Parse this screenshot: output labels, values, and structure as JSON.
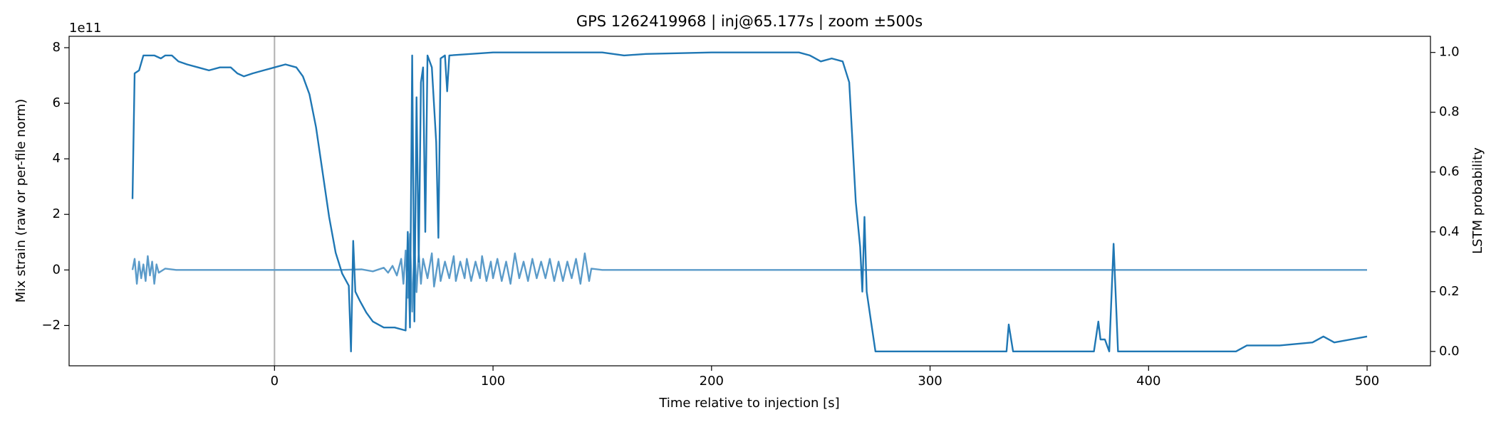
{
  "chart_data": {
    "type": "line",
    "title": "GPS 1262419968 | inj@65.177s | zoom ±500s",
    "xlabel": "Time relative to injection [s]",
    "ylabel": "Mix strain (raw or per-file norm)",
    "y2label": "LSTM probability",
    "y_offset_label": "1e11",
    "xlim": [
      -94,
      529
    ],
    "xticks": [
      0,
      100,
      200,
      300,
      400,
      500
    ],
    "ylim": [
      -3.45,
      8.41
    ],
    "yticks": [
      {
        "value": -2,
        "label": "−2"
      },
      0,
      2,
      4,
      6,
      8
    ],
    "y2lim": [
      -0.048,
      1.054
    ],
    "y2ticks": [
      {
        "value": 0,
        "label": "0.0"
      },
      {
        "value": 0.2,
        "label": "0.2"
      },
      {
        "value": 0.4,
        "label": "0.4"
      },
      {
        "value": 0.6,
        "label": "0.6"
      },
      {
        "value": 0.8,
        "label": "0.8"
      },
      {
        "value": 1.0,
        "label": "1.0"
      }
    ],
    "vline_x": 0,
    "vline_color": "#b0b0b0",
    "grid": false,
    "series": [
      {
        "name": "strain",
        "color": "#5b9bc9",
        "axis": "y",
        "x": [
          -65,
          -64,
          -63,
          -62,
          -61,
          -60,
          -59,
          -58,
          -57,
          -56,
          -55,
          -54,
          -53,
          -50,
          -45,
          -20,
          0,
          30,
          40,
          45,
          50,
          52,
          54,
          56,
          58,
          59,
          60,
          61,
          62,
          63,
          64,
          65,
          66,
          67,
          68,
          70,
          72,
          73,
          75,
          76,
          78,
          80,
          82,
          83,
          85,
          87,
          88,
          90,
          92,
          94,
          95,
          97,
          99,
          100,
          102,
          104,
          106,
          108,
          110,
          112,
          114,
          116,
          118,
          120,
          122,
          124,
          126,
          128,
          130,
          132,
          134,
          136,
          138,
          140,
          142,
          144,
          145,
          150,
          200,
          300,
          400,
          500
        ],
        "values": [
          0,
          0.4,
          -0.5,
          0.3,
          -0.3,
          0.2,
          -0.4,
          0.5,
          -0.2,
          0.3,
          -0.5,
          0.2,
          -0.1,
          0.05,
          0,
          0,
          0,
          0,
          0.02,
          -0.05,
          0.08,
          -0.1,
          0.15,
          -0.2,
          0.4,
          -0.5,
          0.7,
          -1.0,
          1.3,
          -1.5,
          0.9,
          -0.8,
          0.6,
          -0.5,
          0.4,
          -0.3,
          0.6,
          -0.6,
          0.4,
          -0.4,
          0.3,
          -0.3,
          0.5,
          -0.4,
          0.3,
          -0.3,
          0.4,
          -0.4,
          0.3,
          -0.3,
          0.5,
          -0.4,
          0.3,
          -0.3,
          0.4,
          -0.4,
          0.3,
          -0.5,
          0.6,
          -0.3,
          0.3,
          -0.4,
          0.4,
          -0.3,
          0.3,
          -0.3,
          0.4,
          -0.4,
          0.3,
          -0.4,
          0.3,
          -0.3,
          0.4,
          -0.5,
          0.6,
          -0.4,
          0.05,
          0,
          0,
          0,
          0,
          0
        ]
      },
      {
        "name": "LSTM probability",
        "color": "#1f77b4",
        "axis": "y2",
        "x": [
          -65,
          -64,
          -62,
          -60,
          -55,
          -52,
          -50,
          -47,
          -44,
          -40,
          -35,
          -30,
          -25,
          -20,
          -17,
          -14,
          -10,
          -5,
          0,
          5,
          10,
          13,
          16,
          19,
          22,
          25,
          28,
          31,
          34,
          35,
          36,
          37,
          39,
          42,
          45,
          50,
          55,
          60,
          61,
          62,
          63,
          64,
          65,
          66,
          67,
          68,
          69,
          70,
          72,
          74,
          75,
          76,
          78,
          79,
          80,
          100,
          150,
          160,
          170,
          200,
          240,
          245,
          250,
          255,
          260,
          263,
          266,
          268,
          269,
          270,
          271,
          273,
          275,
          300,
          335,
          336,
          338,
          375,
          377,
          378,
          380,
          382,
          384,
          386,
          440,
          445,
          460,
          475,
          480,
          485,
          500
        ],
        "values": [
          0.51,
          0.93,
          0.94,
          0.99,
          0.99,
          0.98,
          0.99,
          0.99,
          0.97,
          0.96,
          0.95,
          0.94,
          0.95,
          0.95,
          0.93,
          0.92,
          0.93,
          0.94,
          0.95,
          0.96,
          0.95,
          0.92,
          0.86,
          0.75,
          0.6,
          0.45,
          0.33,
          0.26,
          0.22,
          0.0,
          0.37,
          0.2,
          0.17,
          0.13,
          0.1,
          0.08,
          0.08,
          0.07,
          0.4,
          0.08,
          0.99,
          0.1,
          0.85,
          0.3,
          0.9,
          0.95,
          0.4,
          0.99,
          0.95,
          0.7,
          0.38,
          0.98,
          0.99,
          0.87,
          0.99,
          1.0,
          1.0,
          0.99,
          0.995,
          1.0,
          1.0,
          0.99,
          0.97,
          0.98,
          0.97,
          0.9,
          0.5,
          0.35,
          0.2,
          0.45,
          0.2,
          0.1,
          0.0,
          0.0,
          0.0,
          0.09,
          0.0,
          0.0,
          0.1,
          0.04,
          0.04,
          0.0,
          0.36,
          0.0,
          0.0,
          0.02,
          0.02,
          0.03,
          0.05,
          0.03,
          0.05
        ]
      }
    ]
  }
}
